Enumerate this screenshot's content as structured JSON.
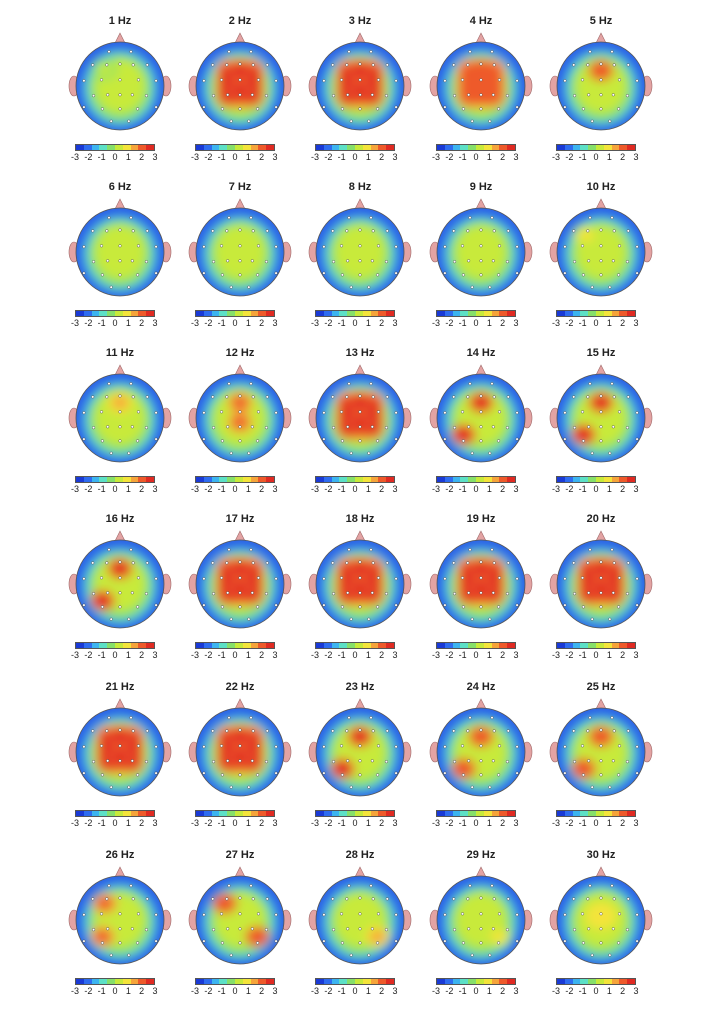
{
  "figure": {
    "colorbar_ticks": [
      "-3",
      "-2",
      "-1",
      "0",
      "1",
      "2",
      "3"
    ],
    "colorscale": [
      "#1a3ad6",
      "#2e6cf0",
      "#3cb4f0",
      "#5ce0c6",
      "#86e06a",
      "#c8ea3a",
      "#f4e43a",
      "#f6a43a",
      "#ee5a2a",
      "#e02a22"
    ]
  },
  "chart_data": {
    "type": "heatmap",
    "description_kind": "scalp topographic maps",
    "value_range": [
      -3,
      3
    ],
    "maps": [
      {
        "title": "1 Hz",
        "dominant_level": 0.5,
        "hotspots": [
          "left-frontal"
        ]
      },
      {
        "title": "2 Hz",
        "dominant_level": 2.8,
        "hotspots": [
          "frontal",
          "central"
        ]
      },
      {
        "title": "3 Hz",
        "dominant_level": 3.0,
        "hotspots": [
          "frontal",
          "central"
        ]
      },
      {
        "title": "4 Hz",
        "dominant_level": 2.6,
        "hotspots": [
          "frontal",
          "central"
        ]
      },
      {
        "title": "5 Hz",
        "dominant_level": 2.6,
        "hotspots": [
          "frontal"
        ]
      },
      {
        "title": "6 Hz",
        "dominant_level": 0.5,
        "hotspots": []
      },
      {
        "title": "7 Hz",
        "dominant_level": 0.3,
        "hotspots": []
      },
      {
        "title": "8 Hz",
        "dominant_level": 0.3,
        "hotspots": []
      },
      {
        "title": "9 Hz",
        "dominant_level": 0.5,
        "hotspots": []
      },
      {
        "title": "10 Hz",
        "dominant_level": 1.2,
        "hotspots": [
          "left-frontal"
        ]
      },
      {
        "title": "11 Hz",
        "dominant_level": 1.5,
        "hotspots": [
          "frontal"
        ]
      },
      {
        "title": "12 Hz",
        "dominant_level": 2.2,
        "hotspots": [
          "frontal",
          "central"
        ]
      },
      {
        "title": "13 Hz",
        "dominant_level": 3.0,
        "hotspots": [
          "frontal",
          "central"
        ]
      },
      {
        "title": "14 Hz",
        "dominant_level": 2.8,
        "hotspots": [
          "frontal",
          "left-parietal"
        ]
      },
      {
        "title": "15 Hz",
        "dominant_level": 3.0,
        "hotspots": [
          "frontal",
          "left-parietal"
        ]
      },
      {
        "title": "16 Hz",
        "dominant_level": 3.0,
        "hotspots": [
          "frontal",
          "left-parietal"
        ]
      },
      {
        "title": "17 Hz",
        "dominant_level": 3.0,
        "hotspots": [
          "frontal",
          "central"
        ]
      },
      {
        "title": "18 Hz",
        "dominant_level": 3.0,
        "hotspots": [
          "frontal",
          "central"
        ]
      },
      {
        "title": "19 Hz",
        "dominant_level": 3.0,
        "hotspots": [
          "frontal",
          "central"
        ]
      },
      {
        "title": "20 Hz",
        "dominant_level": 3.0,
        "hotspots": [
          "frontal",
          "central"
        ]
      },
      {
        "title": "21 Hz",
        "dominant_level": 3.0,
        "hotspots": [
          "frontal",
          "central"
        ]
      },
      {
        "title": "22 Hz",
        "dominant_level": 3.0,
        "hotspots": [
          "frontal",
          "central"
        ]
      },
      {
        "title": "23 Hz",
        "dominant_level": 2.9,
        "hotspots": [
          "frontal",
          "left-parietal"
        ]
      },
      {
        "title": "24 Hz",
        "dominant_level": 2.6,
        "hotspots": [
          "frontal",
          "left-parietal"
        ]
      },
      {
        "title": "25 Hz",
        "dominant_level": 2.6,
        "hotspots": [
          "frontal",
          "left-parietal"
        ]
      },
      {
        "title": "26 Hz",
        "dominant_level": 2.4,
        "hotspots": [
          "left-frontal",
          "left-parietal"
        ]
      },
      {
        "title": "27 Hz",
        "dominant_level": 2.6,
        "hotspots": [
          "left-frontal",
          "right-parietal"
        ]
      },
      {
        "title": "28 Hz",
        "dominant_level": 1.8,
        "hotspots": [
          "right-parietal"
        ]
      },
      {
        "title": "29 Hz",
        "dominant_level": 1.2,
        "hotspots": [
          "right-parietal"
        ]
      },
      {
        "title": "30 Hz",
        "dominant_level": 0.8,
        "hotspots": []
      }
    ]
  }
}
